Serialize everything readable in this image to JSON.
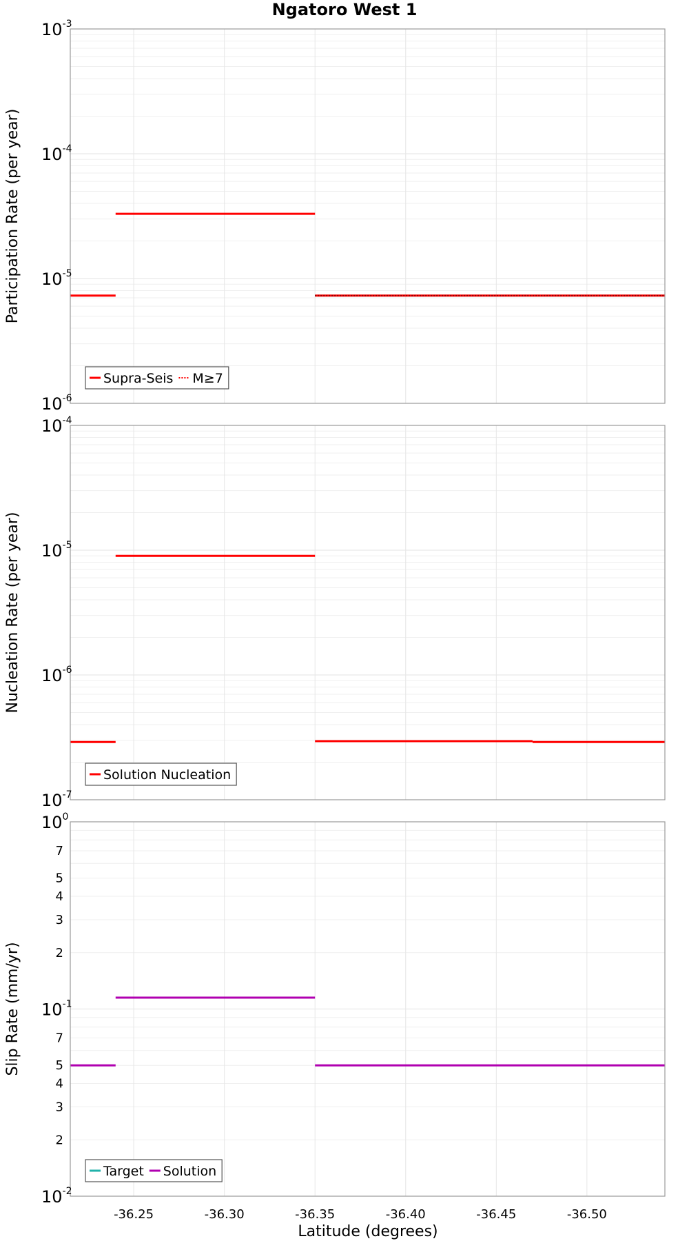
{
  "chart_data": {
    "type": "line",
    "title": "Ngatoro West 1",
    "xlabel": "Latitude (degrees)",
    "xlim": [
      -36.215,
      -36.543
    ],
    "x_ticks": [
      "-36.25",
      "-36.30",
      "-36.35",
      "-36.40",
      "-36.45",
      "-36.50"
    ],
    "x_tick_values": [
      -36.25,
      -36.3,
      -36.35,
      -36.4,
      -36.45,
      -36.5
    ],
    "panels": [
      {
        "ylabel": "Participation Rate (per year)",
        "yscale": "log",
        "ylim": [
          1e-06,
          0.001
        ],
        "decade_labels": [
          {
            "base": "10",
            "exp": "-6"
          },
          {
            "base": "10",
            "exp": "-5"
          },
          {
            "base": "10",
            "exp": "-4"
          },
          {
            "base": "10",
            "exp": "-3"
          }
        ],
        "legend": [
          {
            "label": "Supra-Seis",
            "color": "#ff0000",
            "style": "solid"
          },
          {
            "label": "M≥7",
            "color": "#ff0000",
            "style": "dotted"
          }
        ],
        "series": [
          {
            "name": "Supra-Seis",
            "color": "#ff0000",
            "style": "solid",
            "segments": [
              {
                "x": [
                  -36.215,
                  -36.24
                ],
                "y": 7.3e-06
              },
              {
                "x": [
                  -36.24,
                  -36.35
                ],
                "y": 3.3e-05
              },
              {
                "x": [
                  -36.35,
                  -36.543
                ],
                "y": 7.3e-06
              }
            ]
          },
          {
            "name": "M≥7",
            "color": "#ff0000",
            "style": "dotted",
            "segments": [
              {
                "x": [
                  -36.35,
                  -36.543
                ],
                "y": 7.3e-06
              }
            ]
          }
        ]
      },
      {
        "ylabel": "Nucleation Rate (per year)",
        "yscale": "log",
        "ylim": [
          1e-07,
          0.0001
        ],
        "decade_labels": [
          {
            "base": "10",
            "exp": "-7"
          },
          {
            "base": "10",
            "exp": "-6"
          },
          {
            "base": "10",
            "exp": "-5"
          },
          {
            "base": "10",
            "exp": "-4"
          }
        ],
        "legend": [
          {
            "label": "Solution Nucleation",
            "color": "#ff0000",
            "style": "solid"
          }
        ],
        "series": [
          {
            "name": "Solution Nucleation",
            "color": "#ff0000",
            "style": "solid",
            "segments": [
              {
                "x": [
                  -36.215,
                  -36.24
                ],
                "y": 2.9e-07
              },
              {
                "x": [
                  -36.24,
                  -36.35
                ],
                "y": 9e-06
              },
              {
                "x": [
                  -36.35,
                  -36.47
                ],
                "y": 2.95e-07
              },
              {
                "x": [
                  -36.47,
                  -36.543
                ],
                "y": 2.9e-07
              }
            ]
          }
        ]
      },
      {
        "ylabel": "Slip Rate (mm/yr)",
        "yscale": "log",
        "ylim": [
          0.01,
          1.0
        ],
        "decade_labels": [
          {
            "base": "10",
            "exp": "-2"
          },
          {
            "base": "10",
            "exp": "-1"
          },
          {
            "base": "10",
            "exp": "0"
          }
        ],
        "minor_tick_labels": [
          "2",
          "3",
          "4",
          "5",
          "7"
        ],
        "legend": [
          {
            "label": "Target",
            "color": "#20b2aa",
            "style": "solid"
          },
          {
            "label": "Solution",
            "color": "#b000b0",
            "style": "solid"
          }
        ],
        "series": [
          {
            "name": "Solution",
            "color": "#b000b0",
            "style": "solid",
            "segments": [
              {
                "x": [
                  -36.215,
                  -36.24
                ],
                "y": 0.05
              },
              {
                "x": [
                  -36.24,
                  -36.35
                ],
                "y": 0.115
              },
              {
                "x": [
                  -36.35,
                  -36.543
                ],
                "y": 0.05
              }
            ]
          }
        ]
      }
    ]
  }
}
